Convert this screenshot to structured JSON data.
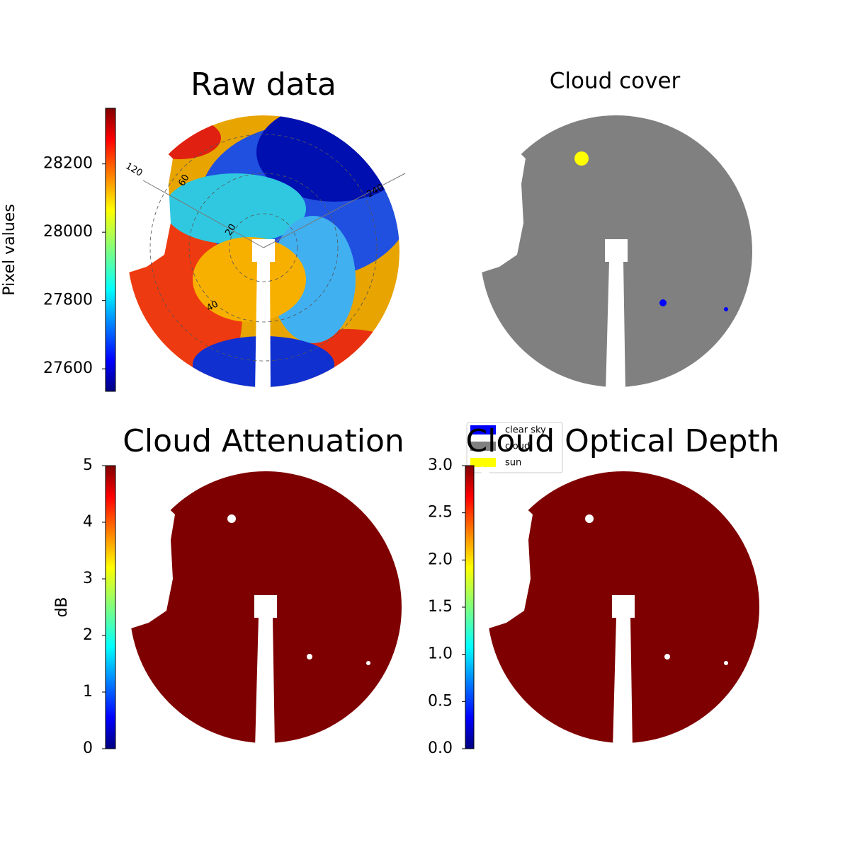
{
  "chart_data": [
    {
      "type": "image",
      "title": "Raw data",
      "colorbar": {
        "label": "Pixel values",
        "lim": [
          27534,
          28363
        ],
        "ticks": [
          27600,
          27800,
          28000,
          28200
        ],
        "cmap": "jet"
      },
      "polar_labels": [
        "120",
        "60",
        "20",
        "40",
        "240"
      ]
    },
    {
      "type": "classification",
      "title": "Cloud cover",
      "legend": [
        {
          "name": "clear sky",
          "color": "#0000ff"
        },
        {
          "name": "cloud",
          "color": "#808080"
        },
        {
          "name": "sun",
          "color": "#ffff00"
        }
      ]
    },
    {
      "type": "image",
      "title": "Cloud Attenuation",
      "colorbar": {
        "label": "dB",
        "lim": [
          0,
          5
        ],
        "ticks": [
          0,
          1,
          2,
          3,
          4,
          5
        ],
        "cmap": "jet"
      }
    },
    {
      "type": "image",
      "title": "Cloud Optical Depth",
      "colorbar": {
        "lim": [
          0,
          3
        ],
        "ticks": [
          {
            "value": 0,
            "label": "0.0"
          },
          {
            "value": 0.5,
            "label": "0.5"
          },
          {
            "value": 1,
            "label": "1.0"
          },
          {
            "value": 1.5,
            "label": "1.5"
          },
          {
            "value": 2,
            "label": "2.0"
          },
          {
            "value": 2.5,
            "label": "2.5"
          },
          {
            "value": 3,
            "label": "3.0"
          }
        ],
        "cmap": "jet"
      }
    }
  ]
}
